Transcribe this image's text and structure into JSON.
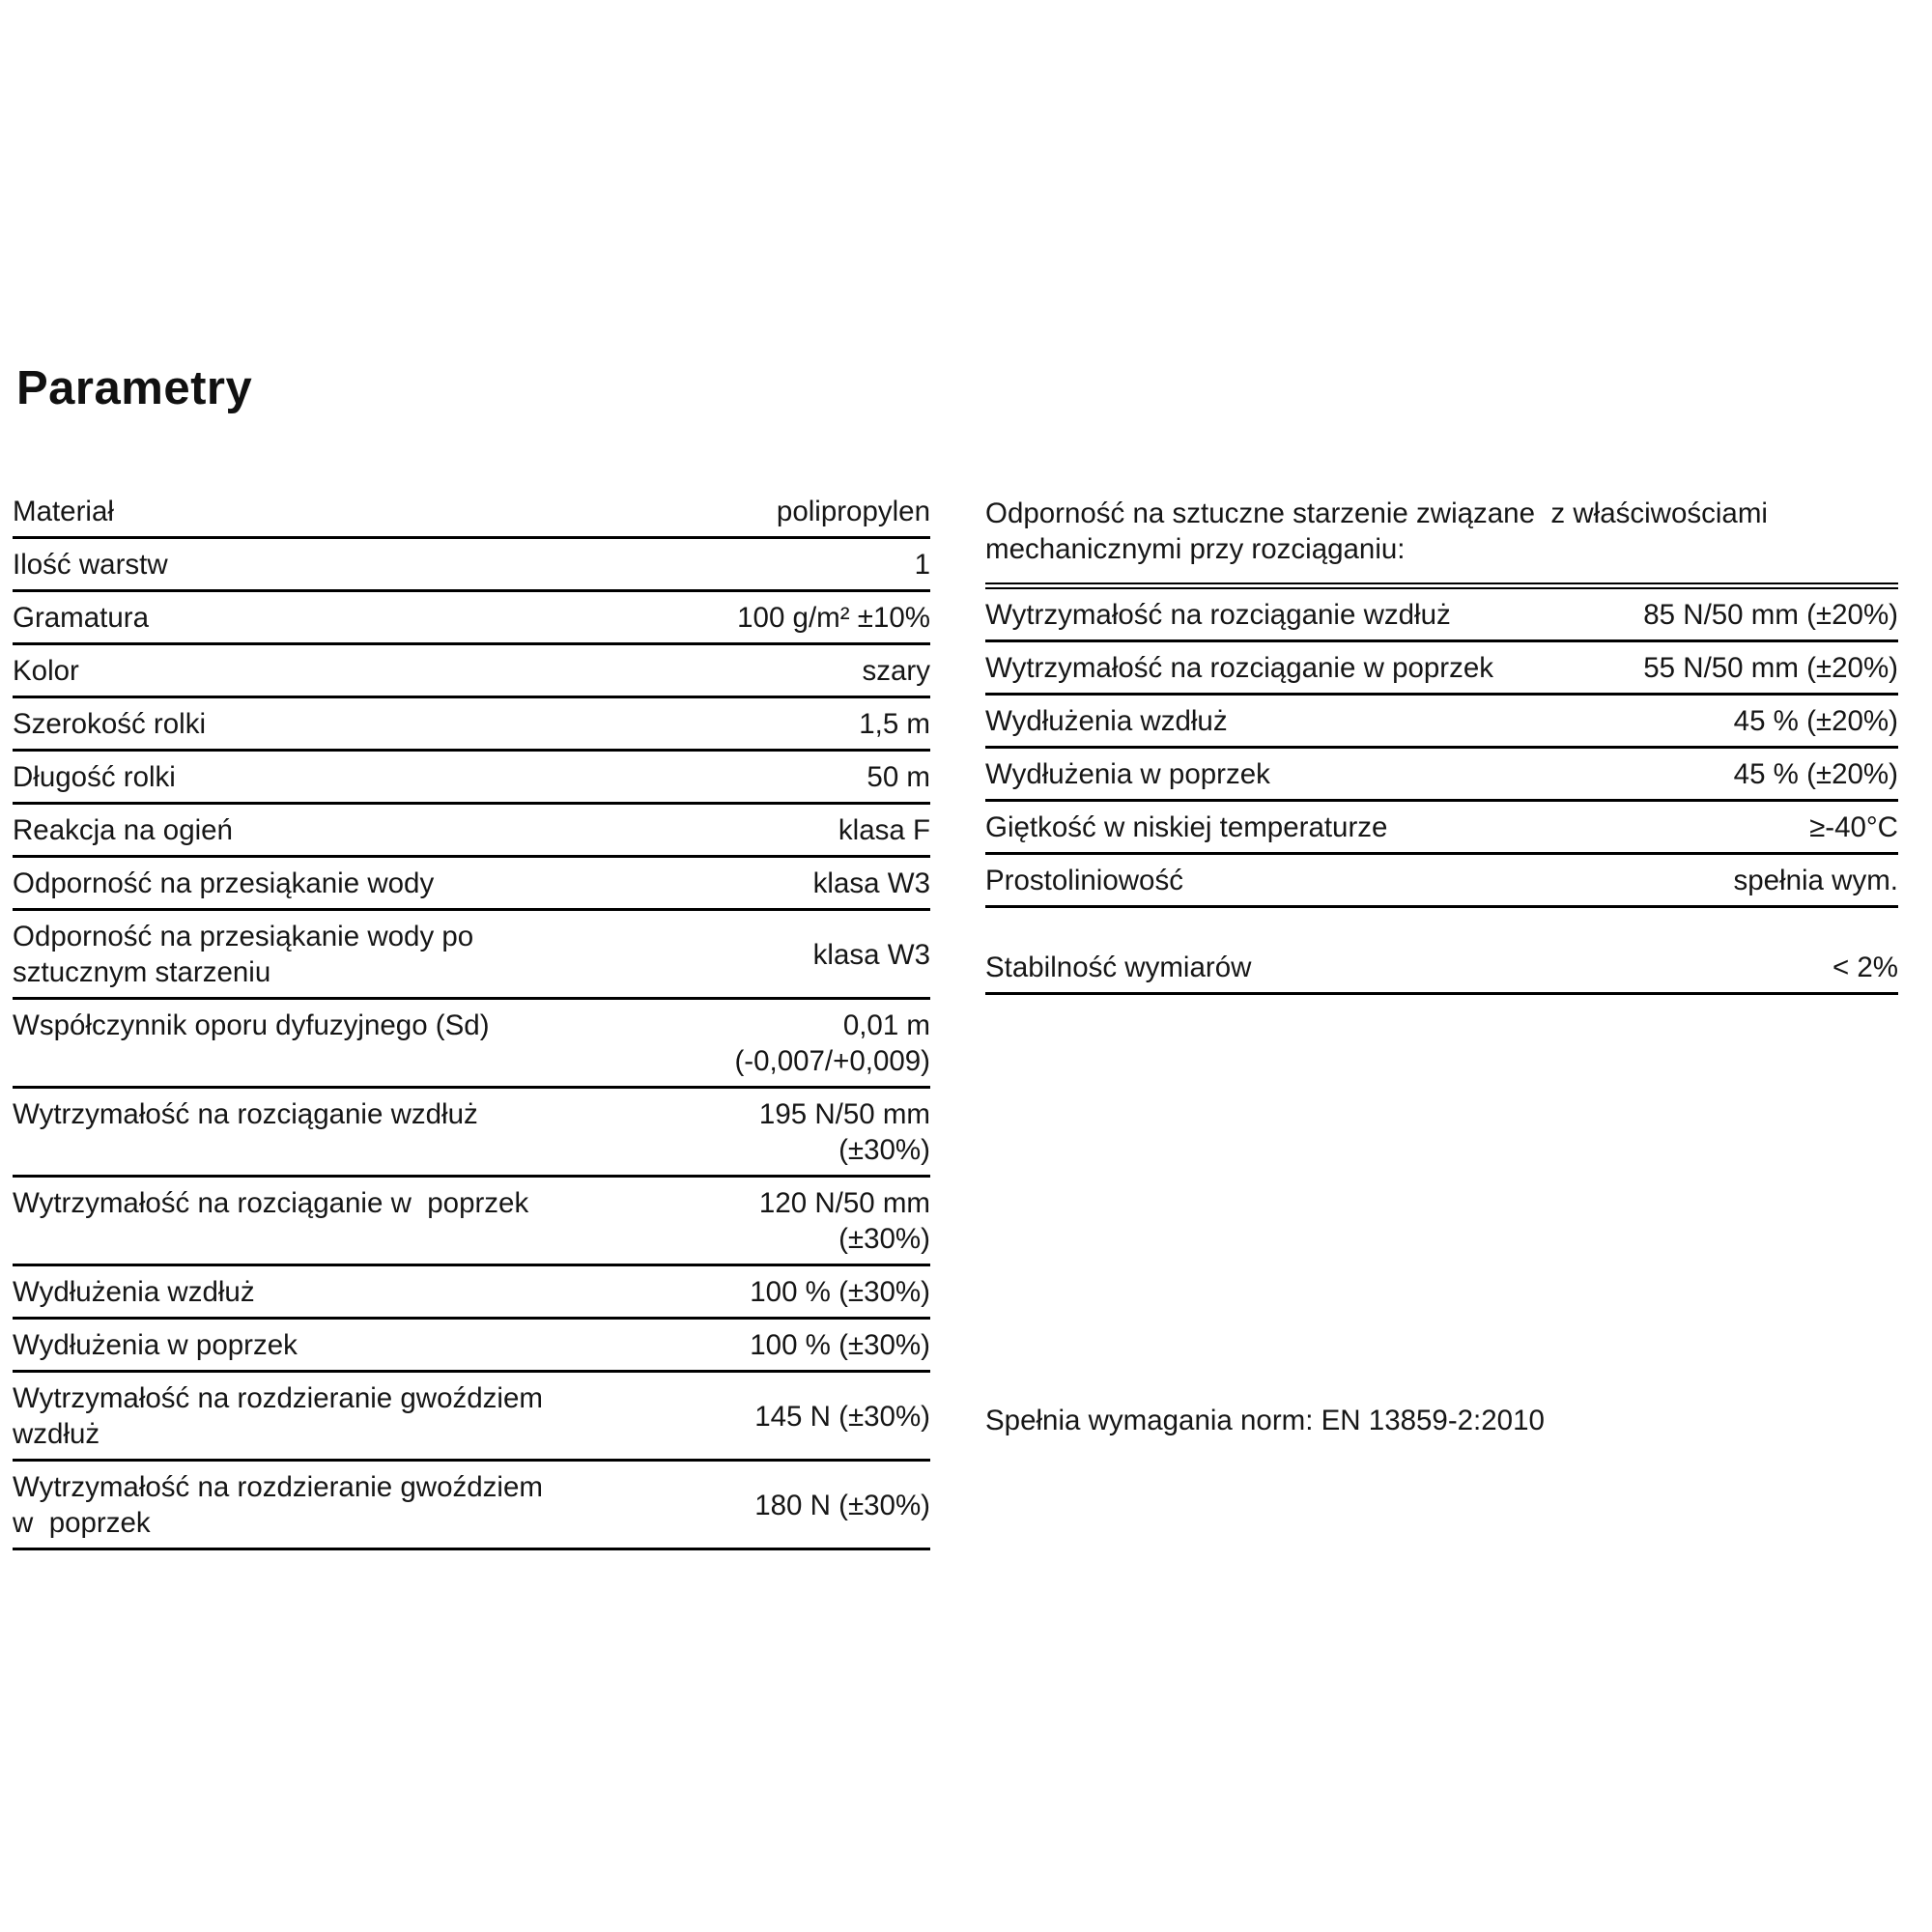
{
  "page": {
    "title": "Parametry",
    "footnote": "Spełnia wymagania norm: EN 13859-2:2010"
  },
  "colors": {
    "text": "#161616",
    "rule_line": "#000000",
    "background": "#ffffff"
  },
  "left_table": {
    "rows": [
      {
        "label": "Materiał",
        "value": "polipropylen"
      },
      {
        "label": "Ilość warstw",
        "value": "1"
      },
      {
        "label": "Gramatura",
        "value": "100 g/m² ±10%"
      },
      {
        "label": "Kolor",
        "value": "szary"
      },
      {
        "label": "Szerokość rolki",
        "value": "1,5 m"
      },
      {
        "label": "Długość rolki",
        "value": "50 m"
      },
      {
        "label": "Reakcja na ogień",
        "value": "klasa F"
      },
      {
        "label": "Odporność na przesiąkanie wody",
        "value": "klasa W3"
      },
      {
        "label": "Odporność na przesiąkanie wody po\nsztucznym starzeniu",
        "value": "klasa W3"
      },
      {
        "label": "Współczynnik oporu dyfuzyjnego (Sd)",
        "value": "0,01 m\n(-0,007/+0,009)"
      },
      {
        "label": "Wytrzymałość na rozciąganie wzdłuż",
        "value": "195 N/50 mm\n(±30%)"
      },
      {
        "label": "Wytrzymałość na rozciąganie w  poprzek",
        "value": "120 N/50 mm\n(±30%)"
      },
      {
        "label": "Wydłużenia wzdłuż",
        "value": "100 % (±30%)"
      },
      {
        "label": "Wydłużenia w poprzek",
        "value": "100 % (±30%)"
      },
      {
        "label": "Wytrzymałość na rozdzieranie gwoździem\nwzdłuż",
        "value": "145 N (±30%)"
      },
      {
        "label": "Wytrzymałość na rozdzieranie gwoździem\nw  poprzek",
        "value": "180 N (±30%)"
      }
    ]
  },
  "right_table": {
    "header": "Odporność na sztuczne starzenie związane  z właściwościami\nmechanicznymi przy rozciąganiu:",
    "rows": [
      {
        "label": "Wytrzymałość na rozciąganie wzdłuż",
        "value": "85 N/50 mm (±20%)"
      },
      {
        "label": "Wytrzymałość na rozciąganie w poprzek",
        "value": "55 N/50 mm (±20%)"
      },
      {
        "label": "Wydłużenia wzdłuż",
        "value": "45 % (±20%)"
      },
      {
        "label": "Wydłużenia w poprzek",
        "value": "45 % (±20%)"
      },
      {
        "label": "Giętkość w niskiej temperaturze",
        "value": "≥-40°C"
      },
      {
        "label": "Prostoliniowość",
        "value": "spełnia wym."
      },
      {
        "label": "Stabilność wymiarów",
        "value": "< 2%"
      }
    ]
  }
}
